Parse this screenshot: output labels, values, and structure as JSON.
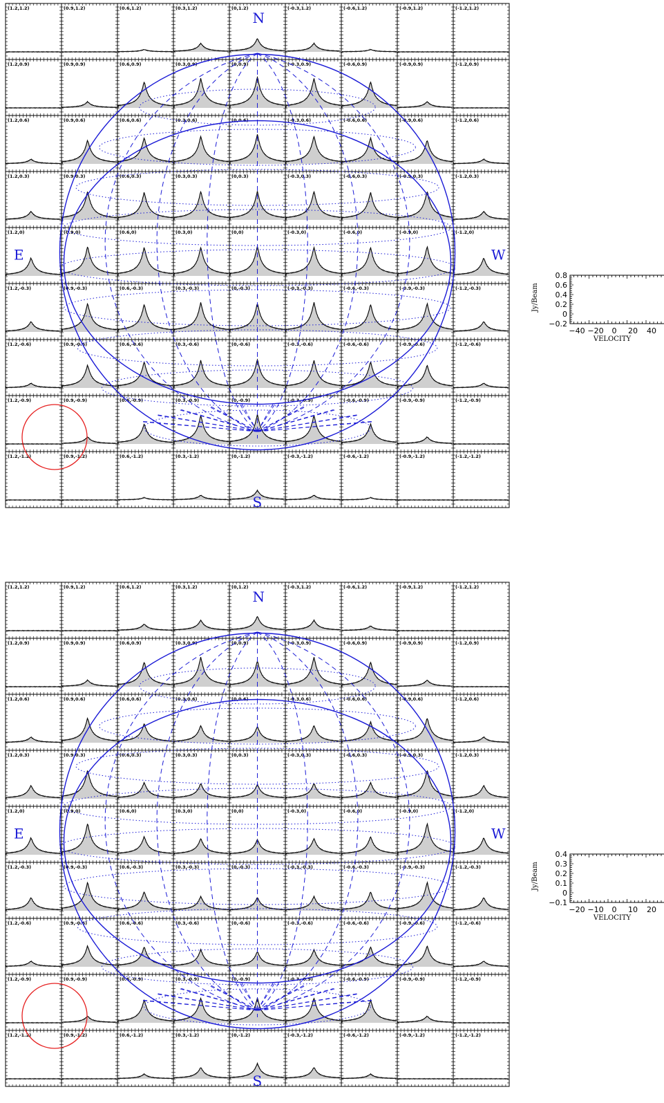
{
  "chart_data": [
    {
      "type": "spectral-map",
      "panel": "top",
      "offsets_x": [
        1.2,
        0.9,
        0.6,
        0.3,
        0,
        -0.3,
        -0.6,
        -0.9,
        -1.2
      ],
      "offsets_y": [
        1.2,
        0.9,
        0.6,
        0.3,
        0,
        -0.3,
        -0.6,
        -0.9,
        -1.2
      ],
      "cell_labels": [
        [
          "(1.2,1.2)",
          "(0.9,1.2)",
          "(0.6,1.2)",
          "(0.3,1.2)",
          "(0,1.2)",
          "(-0.3,1.2)",
          "(-0.6,1.2)",
          "(-0.9,1.2)",
          "(-1.2,1.2)"
        ],
        [
          "(1.2,0.9)",
          "(0.9,0.9)",
          "(0.6,0.9)",
          "(0.3,0.9)",
          "(0,0.9)",
          "(-0.3,0.9)",
          "(-0.6,0.9)",
          "(-0.9,0.9)",
          "(-1.2,0.9)"
        ],
        [
          "(1.2,0.6)",
          "(0.9,0.6)",
          "(0.6,0.6)",
          "(0.3,0.6)",
          "(0,0.6)",
          "(-0.3,0.6)",
          "(-0.6,0.6)",
          "(-0.9,0.6)",
          "(-1.2,0.6)"
        ],
        [
          "(1.2,0.3)",
          "(0.9,0.3)",
          "(0.6,0.3)",
          "(0.3,0.3)",
          "(0,0.3)",
          "(-0.3,0.3)",
          "(-0.6,0.3)",
          "(-0.9,0.3)",
          "(-1.2,0.3)"
        ],
        [
          "(1.2,0)",
          "(0.9,0)",
          "(0.6,0)",
          "(0.3,0)",
          "(0,0)",
          "(-0.3,0)",
          "(-0.6,0)",
          "(-0.9,0)",
          "(-1.2,0)"
        ],
        [
          "(1.2,-0.3)",
          "(0.9,-0.3)",
          "(0.6,-0.3)",
          "(0.3,-0.3)",
          "(0,-0.3)",
          "(-0.3,-0.3)",
          "(-0.6,-0.3)",
          "(-0.9,-0.3)",
          "(-1.2,-0.3)"
        ],
        [
          "(1.2,-0.6)",
          "(0.9,-0.6)",
          "(0.6,-0.6)",
          "(0.3,-0.6)",
          "(0,-0.6)",
          "(-0.3,-0.6)",
          "(-0.6,-0.6)",
          "(-0.9,-0.6)",
          "(-1.2,-0.6)"
        ],
        [
          "(1.2,-0.9)",
          "(0.9,-0.9)",
          "(0.6,-0.9)",
          "(0.3,-0.9)",
          "(0,-0.9)",
          "(-0.3,-0.9)",
          "(-0.6,-0.9)",
          "(-0.9,-0.9)",
          "(-1.2,-0.9)"
        ],
        [
          "(1.2,-1.2)",
          "(0.9,-1.2)",
          "(0.6,-1.2)",
          "(0.3,-1.2)",
          "(0,-1.2)",
          "(-0.3,-1.2)",
          "(-0.6,-1.2)",
          "(-0.9,-1.2)",
          "(-1.2,-1.2)"
        ]
      ],
      "peak_jy_beam": [
        [
          0.0,
          0.0,
          0.05,
          0.18,
          0.28,
          0.18,
          0.05,
          0.0,
          0.0
        ],
        [
          0.0,
          0.13,
          0.55,
          0.62,
          0.65,
          0.62,
          0.55,
          0.13,
          0.0
        ],
        [
          0.1,
          0.5,
          0.55,
          0.58,
          0.62,
          0.58,
          0.55,
          0.5,
          0.1
        ],
        [
          0.18,
          0.6,
          0.58,
          0.6,
          0.6,
          0.6,
          0.58,
          0.6,
          0.18
        ],
        [
          0.38,
          0.62,
          0.6,
          0.6,
          0.62,
          0.6,
          0.6,
          0.62,
          0.38
        ],
        [
          0.22,
          0.6,
          0.58,
          0.62,
          0.6,
          0.62,
          0.58,
          0.6,
          0.22
        ],
        [
          0.1,
          0.48,
          0.55,
          0.58,
          0.6,
          0.58,
          0.55,
          0.48,
          0.1
        ],
        [
          0.0,
          0.15,
          0.42,
          0.6,
          0.62,
          0.6,
          0.42,
          0.15,
          0.0
        ],
        [
          0.0,
          0.0,
          0.05,
          0.1,
          0.2,
          0.1,
          0.05,
          0.0,
          0.0
        ]
      ],
      "compass": {
        "north": "N",
        "south": "S",
        "east": "E",
        "west": "W"
      },
      "reference_axes": {
        "ylabel": "Jy/Beam",
        "xlabel": "VELOCITY",
        "yticks": [
          "0.8",
          "0.6",
          "0.4",
          "0.2",
          "0",
          "−0.2"
        ],
        "xticks": [
          "−40",
          "−20",
          "0",
          "20",
          "40"
        ],
        "ylim": [
          -0.2,
          0.8
        ]
      },
      "colors": {
        "spectrum": "#000000",
        "fill": "#cfcfcf",
        "model": "#1a1ad6",
        "beam": "#e62020"
      }
    },
    {
      "type": "spectral-map",
      "panel": "bottom",
      "offsets_x": [
        1.2,
        0.9,
        0.6,
        0.3,
        0,
        -0.3,
        -0.6,
        -0.9,
        -1.2
      ],
      "offsets_y": [
        1.2,
        0.9,
        0.6,
        0.3,
        0,
        -0.3,
        -0.6,
        -0.9,
        -1.2
      ],
      "cell_labels": [
        [
          "(1.2,1.2)",
          "(0.9,1.2)",
          "(0.6,1.2)",
          "(0.3,1.2)",
          "(0,1.2)",
          "(-0.3,1.2)",
          "(-0.6,1.2)",
          "(-0.9,1.2)",
          "(-1.2,1.2)"
        ],
        [
          "(1.2,0.9)",
          "(0.9,0.9)",
          "(0.6,0.9)",
          "(0.3,0.9)",
          "(0,0.9)",
          "(-0.3,0.9)",
          "(-0.6,0.9)",
          "(-0.9,0.9)",
          "(-1.2,0.9)"
        ],
        [
          "(1.2,0.6)",
          "(0.9,0.6)",
          "(0.6,0.6)",
          "(0.3,0.6)",
          "(0,0.6)",
          "(-0.3,0.6)",
          "(-0.6,0.6)",
          "(-0.9,0.6)",
          "(-1.2,0.6)"
        ],
        [
          "(1.2,0.3)",
          "(0.9,0.3)",
          "(0.6,0.3)",
          "(0.3,0.3)",
          "(0,0.3)",
          "(-0.3,0.3)",
          "(-0.6,0.3)",
          "(-0.9,0.3)",
          "(-1.2,0.3)"
        ],
        [
          "(1.2,0)",
          "(0.9,0)",
          "(0.6,0)",
          "(0.3,0)",
          "(0,0)",
          "(-0.3,0)",
          "(-0.6,0)",
          "(-0.9,0)",
          "(-1.2,0)"
        ],
        [
          "(1.2,-0.3)",
          "(0.9,-0.3)",
          "(0.6,-0.3)",
          "(0.3,-0.3)",
          "(0,-0.3)",
          "(-0.3,-0.3)",
          "(-0.6,-0.3)",
          "(-0.9,-0.3)",
          "(-1.2,-0.3)"
        ],
        [
          "(1.2,-0.6)",
          "(0.9,-0.6)",
          "(0.6,-0.6)",
          "(0.3,-0.6)",
          "(0,-0.6)",
          "(-0.3,-0.6)",
          "(-0.6,-0.6)",
          "(-0.9,-0.6)",
          "(-1.2,-0.6)"
        ],
        [
          "(1.2,-0.9)",
          "(0.9,-0.9)",
          "(0.6,-0.9)",
          "(0.3,-0.9)",
          "(0,-0.9)",
          "(-0.3,-0.9)",
          "(-0.6,-0.9)",
          "(-0.9,-0.9)",
          "(-1.2,-0.9)"
        ],
        [
          "(1.2,-1.2)",
          "(0.9,-1.2)",
          "(0.6,-1.2)",
          "(0.3,-1.2)",
          "(0,-1.2)",
          "(-0.3,-1.2)",
          "(-0.6,-1.2)",
          "(-0.9,-1.2)",
          "(-1.2,-1.2)"
        ]
      ],
      "peak_jy_beam": [
        [
          0.0,
          0.0,
          0.07,
          0.11,
          0.15,
          0.11,
          0.05,
          0.0,
          0.0
        ],
        [
          0.0,
          0.07,
          0.26,
          0.31,
          0.27,
          0.31,
          0.26,
          0.07,
          0.0
        ],
        [
          0.06,
          0.26,
          0.2,
          0.18,
          0.17,
          0.18,
          0.22,
          0.26,
          0.06
        ],
        [
          0.14,
          0.3,
          0.17,
          0.16,
          0.15,
          0.16,
          0.17,
          0.3,
          0.14
        ],
        [
          0.18,
          0.33,
          0.19,
          0.17,
          0.16,
          0.17,
          0.19,
          0.33,
          0.18
        ],
        [
          0.14,
          0.3,
          0.2,
          0.15,
          0.14,
          0.15,
          0.2,
          0.3,
          0.14
        ],
        [
          0.06,
          0.22,
          0.21,
          0.18,
          0.16,
          0.18,
          0.21,
          0.22,
          0.06
        ],
        [
          0.0,
          0.07,
          0.24,
          0.26,
          0.26,
          0.26,
          0.24,
          0.07,
          0.0
        ],
        [
          0.0,
          0.0,
          0.05,
          0.12,
          0.16,
          0.12,
          0.05,
          0.0,
          0.0
        ]
      ],
      "compass": {
        "north": "N",
        "south": "S",
        "east": "E",
        "west": "W"
      },
      "reference_axes": {
        "ylabel": "Jy/Beam",
        "xlabel": "VELOCITY",
        "yticks": [
          "0.4",
          "0.3",
          "0.2",
          "0.1",
          "0",
          "−0.1"
        ],
        "xticks": [
          "−20",
          "−10",
          "0",
          "10",
          "20"
        ],
        "ylim": [
          -0.1,
          0.4
        ]
      },
      "colors": {
        "spectrum": "#000000",
        "fill": "#cfcfcf",
        "model": "#1a1ad6",
        "beam": "#e62020"
      }
    }
  ]
}
